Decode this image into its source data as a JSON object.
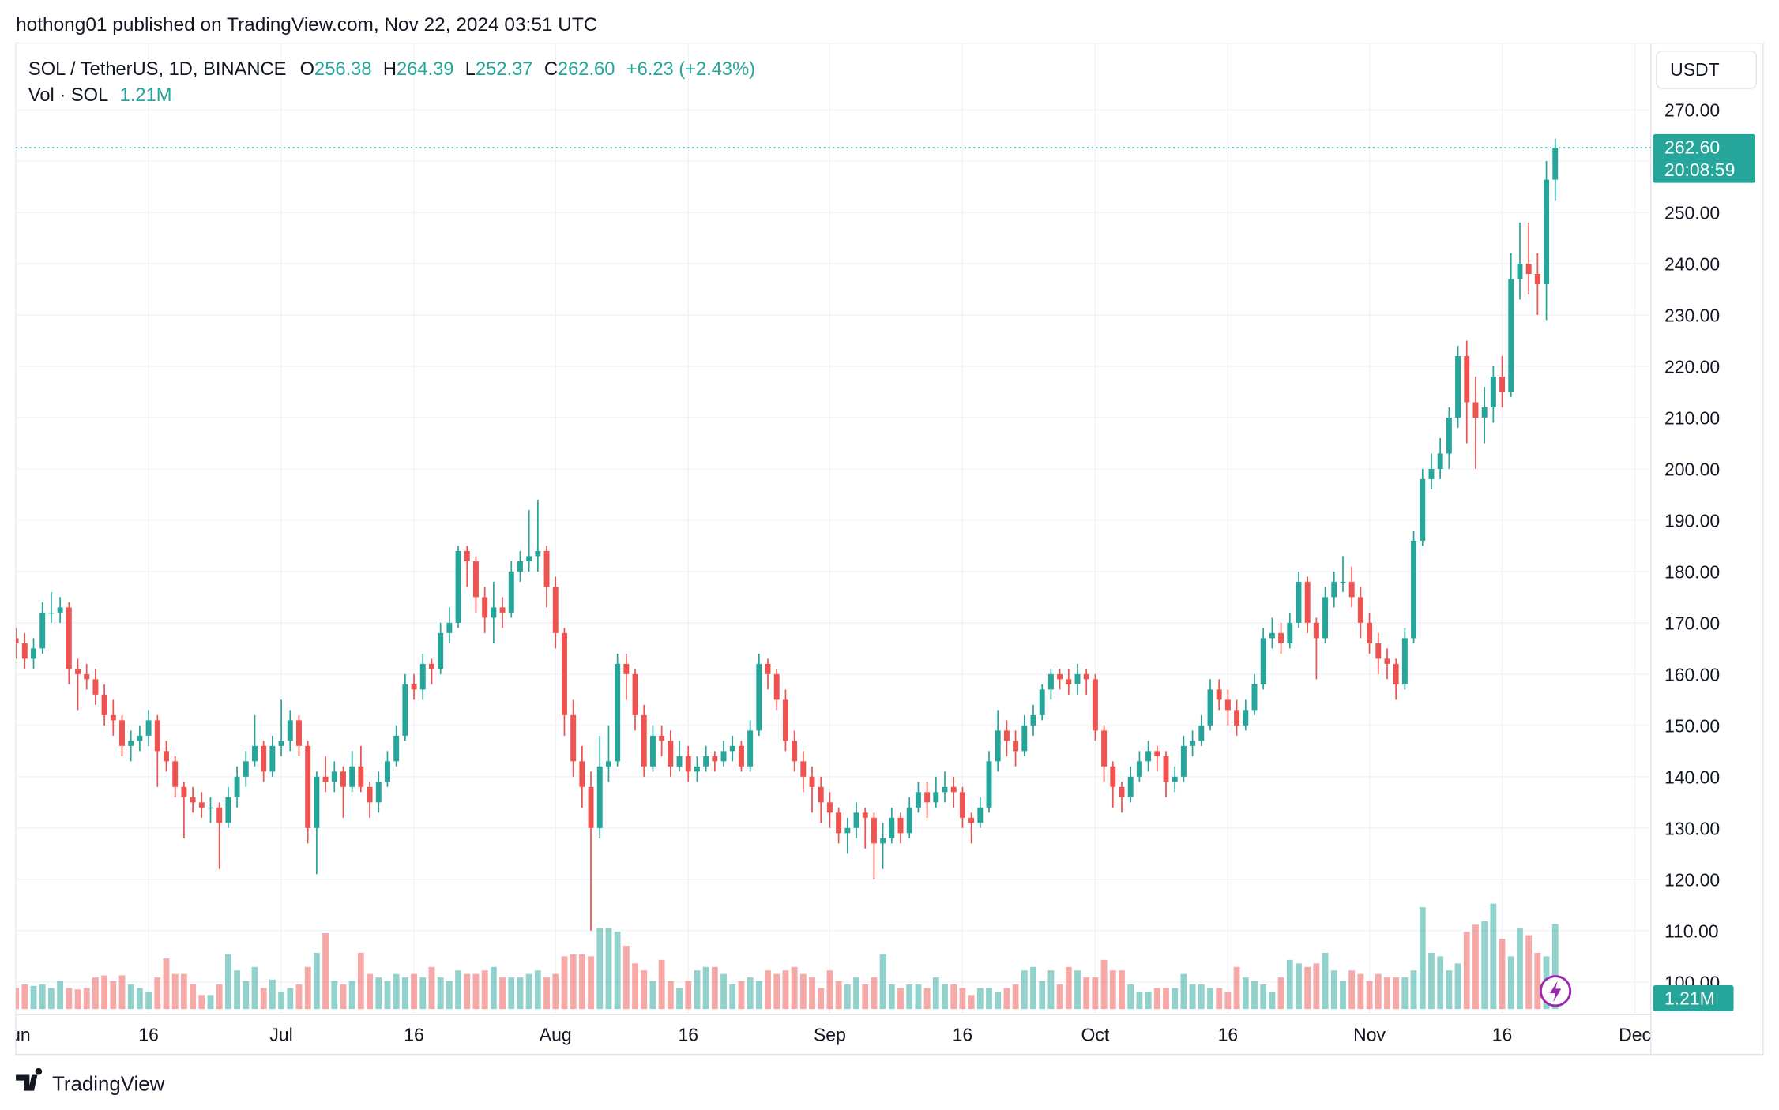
{
  "attribution": "hothong01 published on TradingView.com, Nov 22, 2024 03:51 UTC",
  "brand": "TradingView",
  "chart_data": {
    "type": "candlestick",
    "symbol": "SOL / TetherUS, 1D, BINANCE",
    "ohlc_letters": [
      "O",
      "H",
      "L",
      "C"
    ],
    "last_value_labels": [
      "256.38",
      "264.39",
      "252.37",
      "262.60"
    ],
    "change": "+6.23 (+2.43%)",
    "volume_name": "Vol · SOL",
    "volume_label": "1.21M",
    "currency": "USDT",
    "price_tag": "262.60",
    "countdown": "20:08:59",
    "up_color": "#26a69a",
    "down_color": "#ef5350",
    "grid": true,
    "xlim": [
      0,
      184.8
    ],
    "xticks": [
      {
        "value": 0,
        "label": "Jun"
      },
      {
        "value": 15,
        "label": "16"
      },
      {
        "value": 30,
        "label": "Jul"
      },
      {
        "value": 45,
        "label": "16"
      },
      {
        "value": 61,
        "label": "Aug"
      },
      {
        "value": 76,
        "label": "16"
      },
      {
        "value": 92,
        "label": "Sep"
      },
      {
        "value": 107,
        "label": "16"
      },
      {
        "value": 122,
        "label": "Oct"
      },
      {
        "value": 137,
        "label": "16"
      },
      {
        "value": 153,
        "label": "Nov"
      },
      {
        "value": 168,
        "label": "16"
      },
      {
        "value": 183,
        "label": "Dec"
      }
    ],
    "ylim": [
      93.6,
      283
    ],
    "yticks": [
      {
        "value": 100,
        "label": "100.00"
      },
      {
        "value": 110,
        "label": "110.00"
      },
      {
        "value": 120,
        "label": "120.00"
      },
      {
        "value": 130,
        "label": "130.00"
      },
      {
        "value": 140,
        "label": "140.00"
      },
      {
        "value": 150,
        "label": "150.00"
      },
      {
        "value": 160,
        "label": "160.00"
      },
      {
        "value": 170,
        "label": "170.00"
      },
      {
        "value": 180,
        "label": "180.00"
      },
      {
        "value": 190,
        "label": "190.00"
      },
      {
        "value": 200,
        "label": "200.00"
      },
      {
        "value": 210,
        "label": "210.00"
      },
      {
        "value": 220,
        "label": "220.00"
      },
      {
        "value": 230,
        "label": "230.00"
      },
      {
        "value": 240,
        "label": "240.00"
      },
      {
        "value": 250,
        "label": "250.00"
      },
      {
        "value": 260,
        "label": "260.00"
      },
      {
        "value": 270,
        "label": "270.00"
      }
    ],
    "ohlc": [
      [
        167,
        169,
        163,
        166
      ],
      [
        166,
        168,
        161,
        163
      ],
      [
        163,
        167,
        161,
        165
      ],
      [
        165,
        174,
        164,
        172
      ],
      [
        172,
        176,
        170,
        172
      ],
      [
        172,
        175,
        170,
        173
      ],
      [
        173,
        174,
        158,
        161
      ],
      [
        161,
        163,
        153,
        160
      ],
      [
        160,
        162,
        157,
        159
      ],
      [
        159,
        161,
        154,
        156
      ],
      [
        156,
        158,
        150,
        152
      ],
      [
        152,
        155,
        148,
        151
      ],
      [
        151,
        152,
        144,
        146
      ],
      [
        146,
        149,
        143,
        147
      ],
      [
        147,
        150,
        145,
        148
      ],
      [
        148,
        153,
        146,
        151
      ],
      [
        151,
        152,
        138,
        145
      ],
      [
        145,
        147,
        141,
        143
      ],
      [
        143,
        144,
        136,
        138
      ],
      [
        138,
        139,
        128,
        136
      ],
      [
        136,
        138,
        133,
        135
      ],
      [
        135,
        137,
        132,
        134
      ],
      [
        134,
        136,
        131,
        134
      ],
      [
        134,
        135,
        122,
        131
      ],
      [
        131,
        138,
        130,
        136
      ],
      [
        136,
        142,
        134,
        140
      ],
      [
        140,
        145,
        138,
        143
      ],
      [
        143,
        152,
        142,
        146
      ],
      [
        146,
        147,
        139,
        141
      ],
      [
        141,
        148,
        140,
        146
      ],
      [
        146,
        155,
        144,
        147
      ],
      [
        147,
        153,
        145,
        151
      ],
      [
        151,
        152,
        144,
        146
      ],
      [
        146,
        147,
        127,
        130
      ],
      [
        130,
        141,
        121,
        140
      ],
      [
        140,
        144,
        137,
        139
      ],
      [
        139,
        143,
        137,
        141
      ],
      [
        141,
        142,
        132,
        138
      ],
      [
        138,
        145,
        137,
        142
      ],
      [
        142,
        146,
        137,
        138
      ],
      [
        138,
        139,
        132,
        135
      ],
      [
        135,
        141,
        133,
        139
      ],
      [
        139,
        145,
        138,
        143
      ],
      [
        143,
        150,
        142,
        148
      ],
      [
        148,
        160,
        147,
        158
      ],
      [
        158,
        160,
        155,
        157
      ],
      [
        157,
        164,
        155,
        162
      ],
      [
        162,
        163,
        158,
        161
      ],
      [
        161,
        170,
        160,
        168
      ],
      [
        168,
        173,
        166,
        170
      ],
      [
        170,
        185,
        169,
        184
      ],
      [
        184,
        185,
        177,
        182
      ],
      [
        182,
        183,
        172,
        175
      ],
      [
        175,
        177,
        168,
        171
      ],
      [
        171,
        178,
        166,
        173
      ],
      [
        173,
        175,
        169,
        172
      ],
      [
        172,
        182,
        171,
        180
      ],
      [
        180,
        184,
        178,
        182
      ],
      [
        182,
        192,
        180,
        183
      ],
      [
        183,
        194,
        180,
        184
      ],
      [
        184,
        185,
        173,
        177
      ],
      [
        177,
        179,
        165,
        168
      ],
      [
        168,
        169,
        148,
        152
      ],
      [
        152,
        155,
        140,
        143
      ],
      [
        143,
        146,
        134,
        138
      ],
      [
        138,
        141,
        110,
        130
      ],
      [
        130,
        148,
        128,
        142
      ],
      [
        142,
        150,
        139,
        143
      ],
      [
        143,
        164,
        142,
        162
      ],
      [
        162,
        164,
        155,
        160
      ],
      [
        160,
        161,
        149,
        152
      ],
      [
        152,
        154,
        140,
        142
      ],
      [
        142,
        150,
        141,
        148
      ],
      [
        148,
        150,
        144,
        147
      ],
      [
        147,
        149,
        140,
        142
      ],
      [
        142,
        147,
        141,
        144
      ],
      [
        144,
        146,
        139,
        141
      ],
      [
        141,
        144,
        139,
        142
      ],
      [
        142,
        146,
        141,
        144
      ],
      [
        144,
        145,
        141,
        143
      ],
      [
        143,
        147,
        142,
        145
      ],
      [
        145,
        148,
        143,
        146
      ],
      [
        146,
        147,
        141,
        142
      ],
      [
        142,
        151,
        141,
        149
      ],
      [
        149,
        164,
        148,
        162
      ],
      [
        162,
        163,
        157,
        160
      ],
      [
        160,
        161,
        153,
        155
      ],
      [
        155,
        157,
        145,
        147
      ],
      [
        147,
        149,
        141,
        143
      ],
      [
        143,
        145,
        137,
        140
      ],
      [
        140,
        142,
        133,
        138
      ],
      [
        138,
        140,
        131,
        135
      ],
      [
        135,
        137,
        130,
        133
      ],
      [
        133,
        134,
        127,
        129
      ],
      [
        129,
        132,
        125,
        130
      ],
      [
        130,
        135,
        128,
        133
      ],
      [
        133,
        134,
        126,
        132
      ],
      [
        132,
        133,
        120,
        127
      ],
      [
        127,
        131,
        122,
        128
      ],
      [
        128,
        134,
        127,
        132
      ],
      [
        132,
        133,
        127,
        129
      ],
      [
        129,
        136,
        128,
        134
      ],
      [
        134,
        139,
        133,
        137
      ],
      [
        137,
        139,
        132,
        135
      ],
      [
        135,
        140,
        134,
        137
      ],
      [
        137,
        141,
        135,
        138
      ],
      [
        138,
        140,
        134,
        137
      ],
      [
        137,
        138,
        130,
        132
      ],
      [
        132,
        133,
        127,
        131
      ],
      [
        131,
        136,
        130,
        134
      ],
      [
        134,
        145,
        133,
        143
      ],
      [
        143,
        153,
        141,
        149
      ],
      [
        149,
        151,
        144,
        147
      ],
      [
        147,
        149,
        142,
        145
      ],
      [
        145,
        152,
        144,
        150
      ],
      [
        150,
        154,
        148,
        152
      ],
      [
        152,
        158,
        151,
        157
      ],
      [
        157,
        161,
        155,
        160
      ],
      [
        160,
        161,
        157,
        159
      ],
      [
        159,
        161,
        156,
        158
      ],
      [
        158,
        162,
        156,
        160
      ],
      [
        160,
        161,
        156,
        159
      ],
      [
        159,
        160,
        147,
        149
      ],
      [
        149,
        150,
        139,
        142
      ],
      [
        142,
        143,
        134,
        138
      ],
      [
        138,
        139,
        133,
        136
      ],
      [
        136,
        142,
        135,
        140
      ],
      [
        140,
        145,
        139,
        143
      ],
      [
        143,
        147,
        141,
        145
      ],
      [
        145,
        146,
        141,
        144
      ],
      [
        144,
        145,
        136,
        139
      ],
      [
        139,
        142,
        137,
        140
      ],
      [
        140,
        148,
        139,
        146
      ],
      [
        146,
        149,
        144,
        147
      ],
      [
        147,
        152,
        146,
        150
      ],
      [
        150,
        159,
        149,
        157
      ],
      [
        157,
        159,
        153,
        155
      ],
      [
        155,
        157,
        150,
        153
      ],
      [
        153,
        155,
        148,
        150
      ],
      [
        150,
        155,
        149,
        153
      ],
      [
        153,
        160,
        152,
        158
      ],
      [
        158,
        169,
        157,
        167
      ],
      [
        167,
        171,
        165,
        168
      ],
      [
        168,
        170,
        164,
        166
      ],
      [
        166,
        172,
        165,
        170
      ],
      [
        170,
        180,
        169,
        178
      ],
      [
        178,
        179,
        168,
        170
      ],
      [
        170,
        171,
        159,
        167
      ],
      [
        167,
        177,
        166,
        175
      ],
      [
        175,
        180,
        173,
        178
      ],
      [
        178,
        183,
        176,
        178
      ],
      [
        178,
        181,
        173,
        175
      ],
      [
        175,
        177,
        167,
        170
      ],
      [
        170,
        172,
        164,
        166
      ],
      [
        166,
        168,
        160,
        163
      ],
      [
        163,
        165,
        159,
        162
      ],
      [
        162,
        163,
        155,
        158
      ],
      [
        158,
        169,
        157,
        167
      ],
      [
        167,
        188,
        166,
        186
      ],
      [
        186,
        200,
        185,
        198
      ],
      [
        198,
        203,
        196,
        200
      ],
      [
        200,
        206,
        198,
        203
      ],
      [
        203,
        212,
        200,
        210
      ],
      [
        210,
        224,
        208,
        222
      ],
      [
        222,
        225,
        205,
        213
      ],
      [
        213,
        218,
        200,
        210
      ],
      [
        210,
        216,
        205,
        212
      ],
      [
        212,
        220,
        209,
        218
      ],
      [
        218,
        222,
        212,
        215
      ],
      [
        215,
        242,
        214,
        237
      ],
      [
        237,
        248,
        233,
        240
      ],
      [
        240,
        248,
        234,
        238
      ],
      [
        238,
        242,
        230,
        236
      ],
      [
        236,
        260,
        229,
        256.38
      ],
      [
        256.38,
        264.39,
        252.37,
        262.6
      ]
    ],
    "volume": [
      0.3,
      0.35,
      0.33,
      0.35,
      0.3,
      0.4,
      0.3,
      0.28,
      0.3,
      0.45,
      0.48,
      0.4,
      0.48,
      0.35,
      0.3,
      0.25,
      0.45,
      0.72,
      0.5,
      0.5,
      0.35,
      0.2,
      0.2,
      0.35,
      0.78,
      0.55,
      0.4,
      0.6,
      0.3,
      0.42,
      0.25,
      0.3,
      0.35,
      0.6,
      0.8,
      1.08,
      0.4,
      0.35,
      0.4,
      0.8,
      0.5,
      0.45,
      0.4,
      0.5,
      0.45,
      0.5,
      0.45,
      0.6,
      0.45,
      0.4,
      0.55,
      0.5,
      0.5,
      0.55,
      0.6,
      0.45,
      0.45,
      0.45,
      0.5,
      0.55,
      0.45,
      0.5,
      0.75,
      0.78,
      0.78,
      0.75,
      1.15,
      1.15,
      1.1,
      0.9,
      0.65,
      0.55,
      0.4,
      0.7,
      0.4,
      0.3,
      0.4,
      0.55,
      0.6,
      0.6,
      0.5,
      0.35,
      0.4,
      0.45,
      0.4,
      0.55,
      0.5,
      0.55,
      0.6,
      0.5,
      0.45,
      0.3,
      0.55,
      0.4,
      0.35,
      0.45,
      0.35,
      0.45,
      0.78,
      0.35,
      0.3,
      0.35,
      0.35,
      0.3,
      0.45,
      0.35,
      0.35,
      0.3,
      0.2,
      0.3,
      0.3,
      0.25,
      0.3,
      0.35,
      0.55,
      0.6,
      0.4,
      0.55,
      0.35,
      0.6,
      0.55,
      0.45,
      0.45,
      0.7,
      0.55,
      0.55,
      0.35,
      0.25,
      0.25,
      0.3,
      0.3,
      0.3,
      0.5,
      0.35,
      0.35,
      0.3,
      0.3,
      0.25,
      0.6,
      0.45,
      0.4,
      0.35,
      0.25,
      0.45,
      0.7,
      0.65,
      0.6,
      0.65,
      0.8,
      0.55,
      0.4,
      0.55,
      0.5,
      0.4,
      0.5,
      0.45,
      0.45,
      0.45,
      0.55,
      1.45,
      0.8,
      0.75,
      0.55,
      0.65,
      1.1,
      1.2,
      1.25,
      1.5,
      1.0,
      0.75,
      1.15,
      1.05,
      0.8,
      0.75,
      1.21
    ]
  }
}
